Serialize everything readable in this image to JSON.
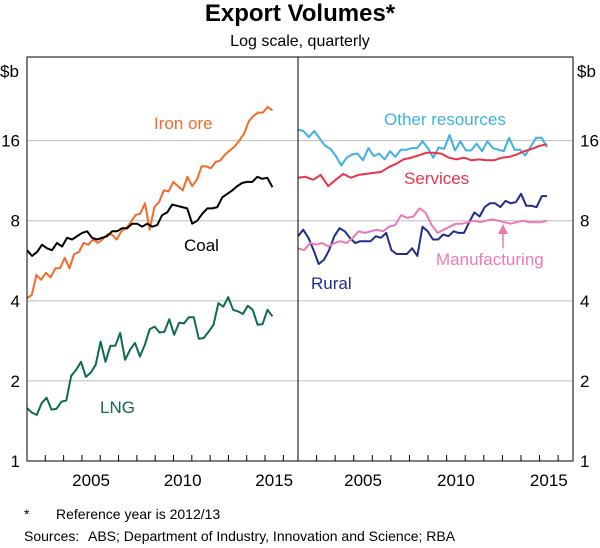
{
  "chart_data": {
    "type": "line",
    "title": "Export Volumes*",
    "subtitle": "Log scale, quarterly",
    "yunit": "$b",
    "yscale": "log2",
    "ylim": [
      1,
      33
    ],
    "yticks": [
      1,
      2,
      4,
      8,
      16
    ],
    "xlim": [
      2002,
      2016.8
    ],
    "xticks": [
      2005,
      2010,
      2015
    ],
    "grid": true,
    "panels": [
      {
        "series": [
          {
            "name": "Iron ore",
            "color": "#f26b2a",
            "start": 2002.0,
            "end": 2015.4,
            "values": [
              4.1,
              4.2,
              5.0,
              4.8,
              5.1,
              4.9,
              5.3,
              5.3,
              5.8,
              5.3,
              6.0,
              6.1,
              6.6,
              6.5,
              6.8,
              6.6,
              6.8,
              7.1,
              7.1,
              6.8,
              7.3,
              7.5,
              7.9,
              8.4,
              8.5,
              9.3,
              7.4,
              9.0,
              9.4,
              10.4,
              10.3,
              11.2,
              10.8,
              10.4,
              11.7,
              10.8,
              11.4,
              12.8,
              12.8,
              12.6,
              13.3,
              13.5,
              14.2,
              14.7,
              15.2,
              16.0,
              17.0,
              18.9,
              19.8,
              20.4,
              20.4,
              21.4,
              20.8
            ]
          },
          {
            "name": "Coal",
            "color": "#000000",
            "start": 2002.0,
            "end": 2015.4,
            "values": [
              6.2,
              5.9,
              6.1,
              6.5,
              6.3,
              6.2,
              6.6,
              6.4,
              6.9,
              6.8,
              7.0,
              7.2,
              7.3,
              6.9,
              6.8,
              6.9,
              7.0,
              7.3,
              7.3,
              7.5,
              7.5,
              7.8,
              7.8,
              7.6,
              7.8,
              7.6,
              7.7,
              8.4,
              8.6,
              9.2,
              9.1,
              9.0,
              8.9,
              7.8,
              8.0,
              8.5,
              8.9,
              8.9,
              9.0,
              9.8,
              10.1,
              10.4,
              10.8,
              11.1,
              11.2,
              11.2,
              11.7,
              11.5,
              11.6,
              10.7
            ]
          },
          {
            "name": "LNG",
            "color": "#0e6b50",
            "start": 2002.0,
            "end": 2015.4,
            "values": [
              1.58,
              1.52,
              1.49,
              1.65,
              1.73,
              1.56,
              1.57,
              1.67,
              1.69,
              2.09,
              2.2,
              2.36,
              2.07,
              2.15,
              2.3,
              2.81,
              2.36,
              2.71,
              2.71,
              3.03,
              2.4,
              2.62,
              2.78,
              2.47,
              2.73,
              3.13,
              3.2,
              3.04,
              3.06,
              3.41,
              2.98,
              3.31,
              3.29,
              3.47,
              3.47,
              2.88,
              2.9,
              3.06,
              3.25,
              3.92,
              3.8,
              4.13,
              3.7,
              3.65,
              3.57,
              3.83,
              3.7,
              3.25,
              3.27,
              3.7,
              3.5
            ]
          }
        ]
      },
      {
        "series": [
          {
            "name": "Other resources",
            "color": "#3fb0e3",
            "start": 2002.0,
            "end": 2015.4,
            "values": [
              17.6,
              17.4,
              16.5,
              17.4,
              16.3,
              15.3,
              14.9,
              14.0,
              12.9,
              13.8,
              14.2,
              14.3,
              13.5,
              15.0,
              14.0,
              14.3,
              13.6,
              14.6,
              13.9,
              14.8,
              14.8,
              15.0,
              15.0,
              15.9,
              15.0,
              13.8,
              15.1,
              14.9,
              16.8,
              14.7,
              15.9,
              14.7,
              14.7,
              15.6,
              14.6,
              15.9,
              15.0,
              14.8,
              14.6,
              16.4,
              14.8,
              14.8,
              14.1,
              15.2,
              16.4,
              16.4,
              15.1
            ]
          },
          {
            "name": "Services",
            "color": "#e8334a",
            "start": 2002.0,
            "end": 2015.4,
            "values": [
              11.6,
              11.7,
              11.4,
              11.9,
              10.8,
              11.4,
              12.0,
              11.6,
              11.9,
              12.0,
              12.1,
              12.2,
              12.7,
              13.1,
              13.6,
              13.8,
              14.1,
              14.4,
              14.4,
              14.3,
              13.8,
              13.6,
              13.8,
              13.5,
              13.6,
              13.5,
              13.5,
              13.8,
              13.9,
              14.2,
              14.6,
              14.9,
              15.3,
              15.5
            ]
          },
          {
            "name": "Rural",
            "color": "#1f2d8c",
            "start": 2002.0,
            "end": 2015.4,
            "values": [
              7.0,
              7.4,
              6.9,
              6.2,
              5.5,
              5.7,
              6.2,
              7.0,
              7.5,
              7.3,
              6.9,
              6.6,
              6.7,
              6.7,
              6.7,
              7.0,
              6.9,
              7.2,
              6.2,
              6.0,
              6.0,
              6.0,
              6.3,
              5.9,
              7.6,
              7.3,
              6.8,
              6.8,
              7.1,
              7.0,
              7.3,
              7.2,
              7.2,
              7.9,
              8.6,
              8.3,
              9.0,
              9.3,
              9.3,
              9.0,
              9.5,
              9.3,
              9.4,
              10.1,
              9.1,
              9.1,
              9.0,
              9.9,
              9.9
            ]
          },
          {
            "name": "Manufacturing",
            "color": "#ee78b2",
            "start": 2002.0,
            "end": 2015.4,
            "values": [
              6.3,
              6.2,
              6.6,
              6.5,
              6.6,
              6.4,
              6.6,
              6.7,
              6.6,
              6.9,
              7.3,
              7.2,
              7.3,
              7.4,
              7.3,
              7.6,
              7.7,
              8.4,
              8.2,
              8.3,
              8.9,
              8.6,
              7.7,
              7.2,
              7.4,
              7.6,
              7.8,
              7.8,
              7.9,
              8.0,
              7.9,
              8.0,
              8.1,
              8.0,
              7.9,
              7.8,
              7.9,
              8.0,
              7.9,
              7.9,
              7.9,
              8.0
            ]
          }
        ]
      }
    ],
    "footnote": "Reference year is 2012/13",
    "footnote_marker": "*",
    "sources_label": "Sources:",
    "sources": "ABS; Department of Industry, Innovation and Science; RBA"
  }
}
